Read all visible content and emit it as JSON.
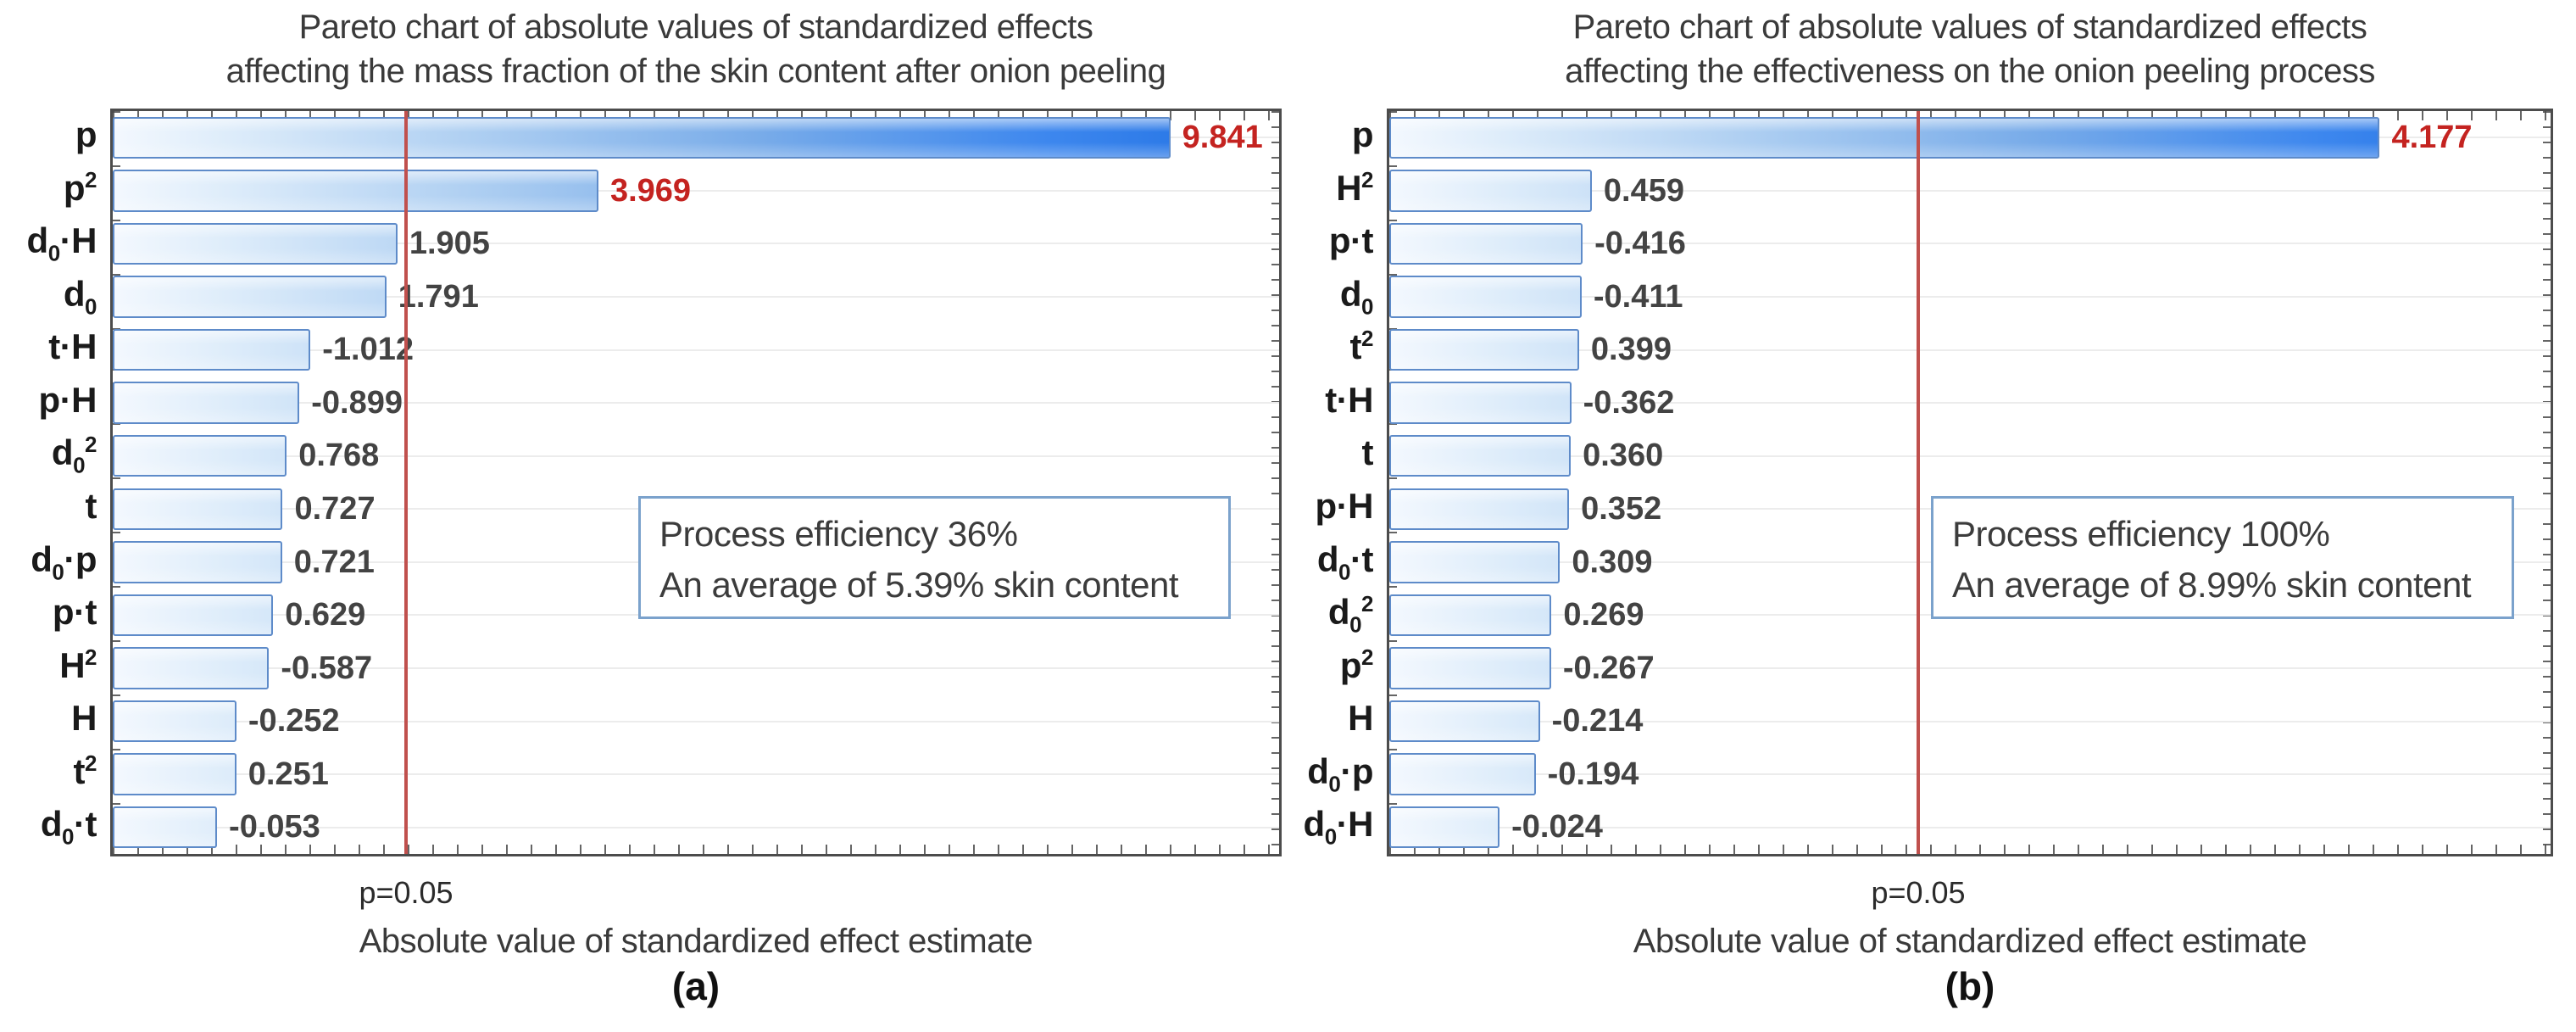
{
  "colors": {
    "bar_fill_light": "#f3f8fe",
    "bar_fill_dark": "#1f6fe2",
    "bar_border": "#5e8bc9",
    "significant_value_text": "#c42320",
    "reference_line": "#c0504d",
    "value_text": "#434343",
    "gridline": "#ececec",
    "axis_border": "#4c4c4c",
    "annotation_border": "#7ba2cc"
  },
  "chart_data": [
    {
      "type": "bar",
      "orientation": "horizontal-pareto",
      "title_lines": [
        "Pareto chart of absolute values of standardized effects",
        "affecting the mass fraction of the skin content after onion peeling"
      ],
      "xlabel": "Absolute value of standardized effect estimate",
      "caption": "(a)",
      "categories": [
        "p",
        "p^2",
        "d_0·H",
        "d_0",
        "t·H",
        "p·H",
        "d_0^2",
        "t",
        "d_0·p",
        "p·t",
        "H^2",
        "H",
        "t^2",
        "d_0·t"
      ],
      "values": [
        9.841,
        3.969,
        1.905,
        1.791,
        -1.012,
        -0.899,
        0.768,
        0.727,
        0.721,
        0.629,
        -0.587,
        -0.252,
        0.251,
        -0.053
      ],
      "value_labels": [
        "9.841",
        "3.969",
        "1.905",
        "1.791",
        "-1.012",
        "-0.899",
        "0.768",
        "0.727",
        "0.721",
        "0.629",
        "-0.587",
        "-0.252",
        "0.251",
        "-0.053"
      ],
      "reference_line": {
        "label": "p=0.05",
        "value": 2.0
      },
      "annotation_lines": [
        "Process efficiency 36%",
        "An average of 5.39% skin content"
      ],
      "axis_range_estimate": [
        -1.0,
        11.0
      ],
      "grid": "horizontal-light",
      "legend": "none"
    },
    {
      "type": "bar",
      "orientation": "horizontal-pareto",
      "title_lines": [
        "Pareto chart of absolute values of standardized effects",
        "affecting the effectiveness on the onion peeling process"
      ],
      "xlabel": "Absolute value of standardized effect estimate",
      "caption": "(b)",
      "categories": [
        "p",
        "H^2",
        "p·t",
        "d_0",
        "t^2",
        "t·H",
        "t",
        "p·H",
        "d_0·t",
        "d_0^2",
        "p^2",
        "H",
        "d_0·p",
        "d_0·H"
      ],
      "values": [
        4.177,
        0.459,
        -0.416,
        -0.411,
        0.399,
        -0.362,
        0.36,
        0.352,
        0.309,
        0.269,
        -0.267,
        -0.214,
        -0.194,
        -0.024
      ],
      "value_labels": [
        "4.177",
        "0.459",
        "-0.416",
        "-0.411",
        "0.399",
        "-0.362",
        "0.360",
        "0.352",
        "0.309",
        "0.269",
        "-0.267",
        "-0.214",
        "-0.194",
        "-0.024"
      ],
      "reference_line": {
        "label": "p=0.05",
        "value": 2.0
      },
      "annotation_lines": [
        "Process efficiency 100%",
        "An average of 8.99% skin content"
      ],
      "axis_range_estimate": [
        -0.5,
        5.0
      ],
      "grid": "horizontal-light",
      "legend": "none"
    }
  ]
}
